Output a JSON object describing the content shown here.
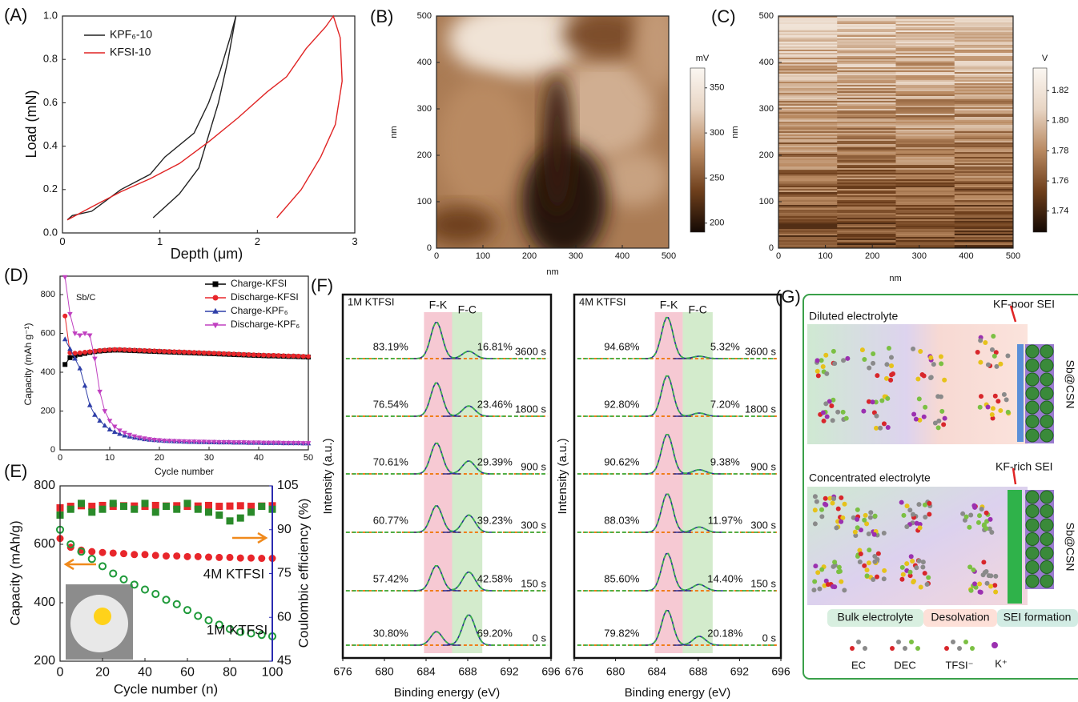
{
  "panels": [
    "(A)",
    "(B)",
    "(C)",
    "(D)",
    "(E)",
    "(F)",
    "(G)"
  ],
  "chart_data": [
    {
      "type": "line",
      "xlabel": "Depth (μm)",
      "ylabel": "Load (mN)",
      "xlim": [
        0,
        3
      ],
      "ylim": [
        0,
        1.0
      ],
      "xticks": [
        0,
        1,
        2,
        3
      ],
      "yticks": [
        {
          "value": 0,
          "label": "0.0"
        },
        0.2,
        0.4,
        0.6,
        0.8,
        {
          "value": 1,
          "label": "1.0"
        }
      ],
      "legend": "upper-left",
      "series": [
        {
          "name": "KPF₆-10",
          "color": "#222222",
          "x": [
            0.05,
            0.1,
            0.3,
            0.6,
            0.9,
            1.05,
            1.35,
            1.5,
            1.62,
            1.72,
            1.78,
            1.7,
            1.6,
            1.5,
            1.4,
            1.2,
            0.93
          ],
          "values": [
            0.06,
            0.08,
            0.1,
            0.2,
            0.27,
            0.35,
            0.46,
            0.6,
            0.75,
            0.9,
            1.0,
            0.8,
            0.6,
            0.45,
            0.3,
            0.18,
            0.07
          ]
        },
        {
          "name": "KFSI-10",
          "color": "#e02424",
          "x": [
            0.05,
            0.3,
            0.6,
            0.9,
            1.2,
            1.5,
            1.8,
            2.1,
            2.3,
            2.5,
            2.7,
            2.78,
            2.85,
            2.87,
            2.8,
            2.65,
            2.45,
            2.2
          ],
          "values": [
            0.06,
            0.12,
            0.19,
            0.25,
            0.32,
            0.42,
            0.53,
            0.65,
            0.72,
            0.85,
            0.95,
            1.0,
            0.9,
            0.7,
            0.5,
            0.35,
            0.2,
            0.07
          ]
        }
      ]
    },
    {
      "type": "heatmap",
      "xlabel": "nm",
      "ylabel": "nm",
      "xlim": [
        0,
        500
      ],
      "ylim": [
        0,
        500
      ],
      "xticks": [
        0,
        100,
        200,
        300,
        400,
        500
      ],
      "yticks": [
        0,
        100,
        200,
        300,
        400,
        500
      ],
      "colorbar_label": "mV",
      "clim": [
        190,
        372
      ],
      "cticks": [
        200,
        250,
        300,
        350
      ],
      "colormap": [
        "#140904",
        "#6e3f1c",
        "#b98a62",
        "#e8d5c4",
        "#fbf7f2"
      ]
    },
    {
      "type": "heatmap",
      "xlabel": "nm",
      "ylabel": "nm",
      "xlim": [
        0,
        500
      ],
      "ylim": [
        0,
        500
      ],
      "xticks": [
        0,
        100,
        200,
        300,
        400,
        500
      ],
      "yticks": [
        0,
        100,
        200,
        300,
        400,
        500
      ],
      "colorbar_label": "V",
      "clim": [
        1.726,
        1.835
      ],
      "cticks": [
        1.74,
        1.76,
        1.78,
        {
          "value": 1.8,
          "label": "1.80"
        },
        1.82
      ],
      "colormap": [
        "#140904",
        "#6e3f1c",
        "#b98a62",
        "#e8d5c4",
        "#fbf7f2"
      ]
    },
    {
      "type": "line",
      "xlabel": "Cycle number",
      "ylabel": "Capacity (mAh g⁻¹)",
      "annotations": [
        "Sb/C"
      ],
      "xlim": [
        0,
        50
      ],
      "ylim": [
        0,
        895
      ],
      "xticks": [
        0,
        10,
        20,
        30,
        40,
        50
      ],
      "yticks": [
        0,
        200,
        400,
        600,
        800
      ],
      "legend": "upper-right",
      "x": [
        1,
        2,
        3,
        4,
        5,
        6,
        7,
        8,
        9,
        10,
        11,
        12,
        13,
        14,
        15,
        16,
        17,
        18,
        19,
        20,
        21,
        22,
        23,
        24,
        25,
        26,
        27,
        28,
        29,
        30,
        31,
        32,
        33,
        34,
        35,
        36,
        37,
        38,
        39,
        40,
        41,
        42,
        43,
        44,
        45,
        46,
        47,
        48,
        49,
        50
      ],
      "series": [
        {
          "name": "Charge-KFSI",
          "color": "#000000",
          "marker": "square",
          "values": [
            440,
            475,
            485,
            492,
            497,
            502,
            506,
            509,
            511,
            513,
            514,
            514,
            513,
            512,
            511,
            510,
            509,
            508,
            507,
            506,
            505,
            504,
            503,
            502,
            501,
            500,
            499,
            498,
            497,
            496,
            495,
            494,
            493,
            492,
            491,
            490,
            489,
            488,
            487,
            486,
            485,
            484,
            484,
            483,
            482,
            481,
            481,
            480,
            479,
            478
          ]
        },
        {
          "name": "Discharge-KFSI",
          "color": "#e8262b",
          "marker": "circle",
          "values": [
            690,
            500,
            498,
            500,
            503,
            506,
            509,
            512,
            514,
            516,
            517,
            517,
            516,
            515,
            514,
            513,
            512,
            511,
            510,
            509,
            508,
            507,
            506,
            505,
            504,
            503,
            502,
            501,
            500,
            499,
            498,
            497,
            496,
            495,
            494,
            493,
            492,
            491,
            490,
            489,
            488,
            487,
            487,
            486,
            485,
            484,
            484,
            483,
            482,
            481
          ]
        },
        {
          "name": "Charge-KPF₆",
          "color": "#2f3fa8",
          "marker": "triangle",
          "values": [
            570,
            520,
            470,
            420,
            330,
            230,
            180,
            150,
            125,
            105,
            92,
            82,
            74,
            68,
            63,
            59,
            55,
            52,
            50,
            48,
            46,
            45,
            44,
            43,
            42,
            41,
            41,
            40,
            40,
            39,
            39,
            38,
            38,
            38,
            37,
            37,
            37,
            36,
            36,
            36,
            35,
            35,
            35,
            35,
            34,
            34,
            34,
            34,
            33,
            33
          ]
        },
        {
          "name": "Discharge-KPF₆",
          "color": "#c040c0",
          "marker": "triangle-down",
          "values": [
            890,
            700,
            600,
            590,
            600,
            590,
            470,
            300,
            200,
            150,
            120,
            100,
            88,
            78,
            70,
            64,
            59,
            55,
            52,
            50,
            48,
            47,
            46,
            45,
            44,
            43,
            43,
            42,
            42,
            41,
            41,
            40,
            40,
            40,
            39,
            39,
            39,
            38,
            38,
            38,
            37,
            37,
            37,
            37,
            36,
            36,
            36,
            36,
            35,
            35
          ]
        }
      ]
    },
    {
      "type": "scatter",
      "xlabel": "Cycle number (n)",
      "ylabel": "Capacity (mAh/g)",
      "y2label": "Coulombic efficiency (%)",
      "y2_color": "#2b2bb0",
      "annotations": [
        "4M KTFSI",
        "1M KTFSI"
      ],
      "xlim": [
        0,
        100
      ],
      "ylim": [
        200,
        800
      ],
      "y2lim": [
        45,
        105
      ],
      "xticks": [
        0,
        20,
        40,
        60,
        80,
        100
      ],
      "yticks": [
        200,
        400,
        600,
        800
      ],
      "y2ticks": [
        45,
        60,
        75,
        90,
        105
      ],
      "x": [
        0,
        5,
        10,
        15,
        20,
        25,
        30,
        35,
        40,
        45,
        50,
        55,
        60,
        65,
        70,
        75,
        80,
        85,
        90,
        95,
        100
      ],
      "series": [
        {
          "color": "#e8262b",
          "marker": "circle",
          "values": [
            620,
            590,
            580,
            575,
            572,
            570,
            568,
            565,
            565,
            562,
            560,
            560,
            558,
            558,
            556,
            555,
            555,
            553,
            553,
            552,
            552
          ]
        },
        {
          "color": "#1f9a3a",
          "marker": "circle-open",
          "values": [
            650,
            600,
            575,
            550,
            525,
            500,
            480,
            462,
            445,
            430,
            410,
            395,
            375,
            355,
            340,
            325,
            310,
            300,
            295,
            290,
            285
          ]
        },
        {
          "color": "#e8262b",
          "marker": "square",
          "axis": "y2",
          "values": [
            97.5,
            98,
            98.2,
            98,
            98.3,
            98,
            98.2,
            98.1,
            98,
            98.3,
            98.1,
            98.2,
            98,
            98.1,
            98.3,
            98,
            98.1,
            98.2,
            98,
            98.1,
            98.2
          ]
        },
        {
          "color": "#2a8a2a",
          "marker": "square",
          "axis": "y2",
          "values": [
            95,
            97,
            99,
            96,
            97,
            99,
            98,
            97,
            99,
            96,
            98,
            97,
            99,
            97,
            96,
            95,
            93,
            94,
            96,
            98,
            97
          ]
        }
      ]
    },
    {
      "type": "xps",
      "title": "1M KTFSI",
      "xlabel": "Binding energy (eV)",
      "ylabel": "Intensity (a.u.)",
      "xlim": [
        676,
        696
      ],
      "xticks": [
        676,
        680,
        684,
        688,
        692,
        696
      ],
      "times": [
        "3600 s",
        "1800 s",
        "900 s",
        "300 s",
        "150 s",
        "0 s"
      ],
      "series": [
        {
          "name": "F-K",
          "color": "#f6c9d3",
          "values": [
            83.19,
            76.54,
            70.61,
            60.77,
            57.42,
            30.8
          ],
          "value_labels": [
            "83.19%",
            "76.54%",
            "70.61%",
            "60.77%",
            "57.42%",
            "30.80%"
          ]
        },
        {
          "name": "F-C",
          "color": "#d3ebcc",
          "values": [
            16.81,
            23.46,
            29.39,
            39.23,
            42.58,
            69.2
          ],
          "value_labels": [
            "16.81%",
            "23.46%",
            "29.39%",
            "39.23%",
            "42.58%",
            "69.20%"
          ]
        }
      ]
    },
    {
      "type": "xps",
      "title": "4M KTFSI",
      "xlabel": "Binding energy (eV)",
      "ylabel": "Intensity (a.u.)",
      "xlim": [
        676,
        696
      ],
      "xticks": [
        676,
        680,
        684,
        688,
        692,
        696
      ],
      "times": [
        "3600 s",
        "1800 s",
        "900 s",
        "300 s",
        "150 s",
        "0 s"
      ],
      "series": [
        {
          "name": "F-K",
          "color": "#f6c9d3",
          "values": [
            94.68,
            92.8,
            90.62,
            88.03,
            85.6,
            79.82
          ],
          "value_labels": [
            "94.68%",
            "92.80%",
            "90.62%",
            "88.03%",
            "85.60%",
            "79.82%"
          ]
        },
        {
          "name": "F-C",
          "color": "#d3ebcc",
          "values": [
            5.32,
            7.2,
            9.38,
            11.97,
            14.4,
            20.18
          ],
          "value_labels": [
            "5.32%",
            "7.20%",
            "9.38%",
            "11.97%",
            "14.40%",
            "20.18%"
          ]
        }
      ]
    }
  ],
  "diagram": {
    "top": {
      "title": "Diluted electrolyte",
      "sei": "KF-poor SEI",
      "electrode": "Sb@CSN"
    },
    "bottom": {
      "title": "Concentrated electrolyte",
      "sei": "KF-rich SEI",
      "electrode": "Sb@CSN"
    },
    "stages": [
      "Bulk electrolyte",
      "Desolvation",
      "SEI formation"
    ],
    "legend": [
      "EC",
      "DEC",
      "TFSI⁻",
      "K⁺"
    ]
  }
}
